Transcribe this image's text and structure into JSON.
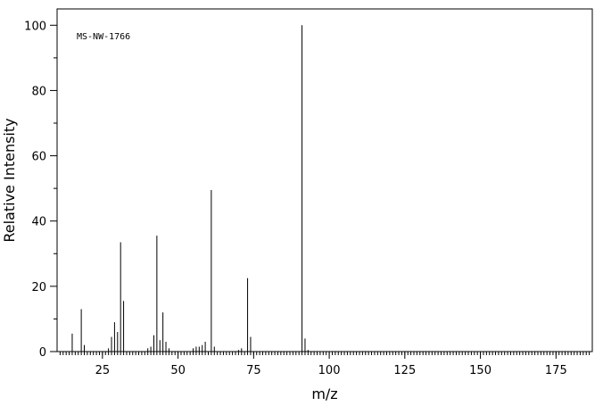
{
  "chart_data": {
    "type": "bar",
    "annotation": "MS-NW-1766",
    "xlabel": "m/z",
    "ylabel": "Relative Intensity",
    "xlim": [
      10,
      187
    ],
    "ylim": [
      0,
      105
    ],
    "x_ticks": [
      25,
      50,
      75,
      100,
      125,
      150,
      175
    ],
    "y_ticks": [
      0,
      20,
      40,
      60,
      80,
      100
    ],
    "grid": false,
    "peaks": [
      {
        "mz": 15,
        "intensity": 5.5
      },
      {
        "mz": 18,
        "intensity": 13.0
      },
      {
        "mz": 19,
        "intensity": 2.0
      },
      {
        "mz": 27,
        "intensity": 1.0
      },
      {
        "mz": 28,
        "intensity": 4.5
      },
      {
        "mz": 29,
        "intensity": 9.0
      },
      {
        "mz": 30,
        "intensity": 6.0
      },
      {
        "mz": 31,
        "intensity": 33.5
      },
      {
        "mz": 32,
        "intensity": 15.5
      },
      {
        "mz": 40,
        "intensity": 1.0
      },
      {
        "mz": 41,
        "intensity": 1.5
      },
      {
        "mz": 42,
        "intensity": 5.0
      },
      {
        "mz": 43,
        "intensity": 35.5
      },
      {
        "mz": 44,
        "intensity": 3.5
      },
      {
        "mz": 45,
        "intensity": 12.0
      },
      {
        "mz": 46,
        "intensity": 3.0
      },
      {
        "mz": 47,
        "intensity": 1.0
      },
      {
        "mz": 55,
        "intensity": 1.0
      },
      {
        "mz": 56,
        "intensity": 1.5
      },
      {
        "mz": 57,
        "intensity": 1.5
      },
      {
        "mz": 58,
        "intensity": 2.0
      },
      {
        "mz": 59,
        "intensity": 3.0
      },
      {
        "mz": 61,
        "intensity": 49.5
      },
      {
        "mz": 62,
        "intensity": 1.5
      },
      {
        "mz": 70,
        "intensity": 0.5
      },
      {
        "mz": 71,
        "intensity": 1.0
      },
      {
        "mz": 73,
        "intensity": 22.5
      },
      {
        "mz": 74,
        "intensity": 4.5
      },
      {
        "mz": 91,
        "intensity": 100
      },
      {
        "mz": 92,
        "intensity": 4.0
      },
      {
        "mz": 93,
        "intensity": 0.5
      }
    ]
  }
}
